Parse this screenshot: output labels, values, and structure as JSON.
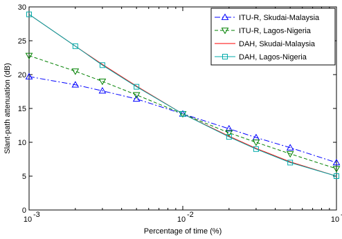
{
  "chart_data": {
    "type": "line",
    "xlabel": "Percentage of time (%)",
    "ylabel": "Slant-path attenuation (dB)",
    "xscale": "log",
    "xlim": [
      0.001,
      0.1
    ],
    "ylim": [
      0,
      30
    ],
    "grid": false,
    "legend_position": "top-right",
    "x": [
      0.001,
      0.002,
      0.003,
      0.005,
      0.01,
      0.02,
      0.03,
      0.05,
      0.1
    ],
    "x_ticks": [
      {
        "base": "10",
        "exp": "-3"
      },
      {
        "base": "10",
        "exp": "-2"
      },
      {
        "base": "10",
        "exp": "-1"
      }
    ],
    "y_ticks": [
      "0",
      "5",
      "10",
      "15",
      "20",
      "25",
      "30"
    ],
    "series": [
      {
        "name": "ITU-R, Skudai-Malaysia",
        "color": "#0000ff",
        "dash": "dashdot",
        "marker": "triangle-up",
        "values": [
          19.7,
          18.5,
          17.6,
          16.4,
          14.2,
          12.0,
          10.7,
          9.2,
          7.0
        ]
      },
      {
        "name": "ITU-R, Lagos-Nigeria",
        "color": "#008000",
        "dash": "dashed",
        "marker": "triangle-down",
        "values": [
          22.8,
          20.5,
          19.0,
          17.0,
          14.2,
          11.4,
          10.0,
          8.3,
          6.1
        ]
      },
      {
        "name": "DAH, Skudai-Malaysia",
        "color": "#ff0000",
        "dash": "solid",
        "marker": "none",
        "values": [
          28.9,
          24.2,
          21.5,
          18.3,
          14.2,
          10.9,
          9.1,
          7.1,
          5.0
        ]
      },
      {
        "name": "DAH, Lagos-Nigeria",
        "color": "#00aaaa",
        "dash": "solid",
        "marker": "square",
        "values": [
          28.9,
          24.2,
          21.4,
          18.2,
          14.2,
          10.8,
          9.0,
          7.0,
          5.0
        ]
      }
    ]
  }
}
